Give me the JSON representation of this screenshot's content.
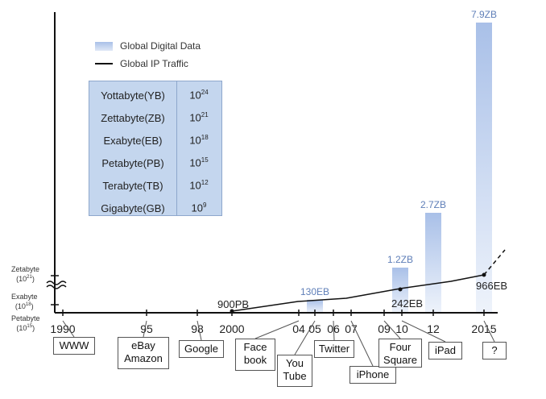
{
  "chart_data": {
    "type": "bar",
    "legend": [
      "Global Digital Data",
      "Global IP Traffic"
    ],
    "x_ticks": [
      "1990",
      "95",
      "98",
      "2000",
      "04",
      "05",
      "06",
      "07",
      "09",
      "10",
      "12",
      "2015"
    ],
    "y_axis_labels": [
      {
        "name": "Zetabyte",
        "power": "(10",
        "exp": "21",
        "close": ")"
      },
      {
        "name": "Exabyte",
        "power": "(10",
        "exp": "18",
        "close": ")"
      },
      {
        "name": "Petabyte",
        "power": "(10",
        "exp": "15",
        "close": ")"
      }
    ],
    "bars": [
      {
        "year": "2005",
        "label": "130EB"
      },
      {
        "year": "2010",
        "label": "1.2ZB"
      },
      {
        "year": "2012",
        "label": "2.7ZB"
      },
      {
        "year": "2015",
        "label": "7.9ZB"
      }
    ],
    "traffic_points": [
      {
        "year": "2000",
        "label": "900PB"
      },
      {
        "year": "2010",
        "label": "242EB"
      },
      {
        "year": "2015",
        "label": "966EB"
      }
    ],
    "units_table": [
      {
        "name": "Yottabyte(YB)",
        "base": "10",
        "exp": "24"
      },
      {
        "name": "Zettabyte(ZB)",
        "base": "10",
        "exp": "21"
      },
      {
        "name": "Exabyte(EB)",
        "base": "10",
        "exp": "18"
      },
      {
        "name": "Petabyte(PB)",
        "base": "10",
        "exp": "15"
      },
      {
        "name": "Terabyte(TB)",
        "base": "10",
        "exp": "12"
      },
      {
        "name": "Gigabyte(GB)",
        "base": "10",
        "exp": "9"
      }
    ],
    "events": [
      {
        "year": "1990",
        "text": [
          "WWW"
        ]
      },
      {
        "year": "95",
        "text": [
          "eBay",
          "Amazon"
        ]
      },
      {
        "year": "98",
        "text": [
          "Google"
        ]
      },
      {
        "year": "04",
        "text": [
          "Face",
          "book"
        ]
      },
      {
        "year": "05",
        "text": [
          "You",
          "Tube"
        ]
      },
      {
        "year": "06",
        "text": [
          "Twitter"
        ]
      },
      {
        "year": "07",
        "text": [
          "iPhone"
        ]
      },
      {
        "year": "09",
        "text": [
          "Four",
          "Square"
        ]
      },
      {
        "year": "10",
        "text": [
          "iPad"
        ]
      },
      {
        "year": "2015",
        "text": [
          "?"
        ]
      }
    ],
    "colors": {
      "bar_top": "#a9c0e8",
      "bar_bottom": "#eef3fb",
      "bar_label": "#5f7fb8",
      "line": "#111111",
      "table_bg": "#c4d6ee"
    }
  }
}
